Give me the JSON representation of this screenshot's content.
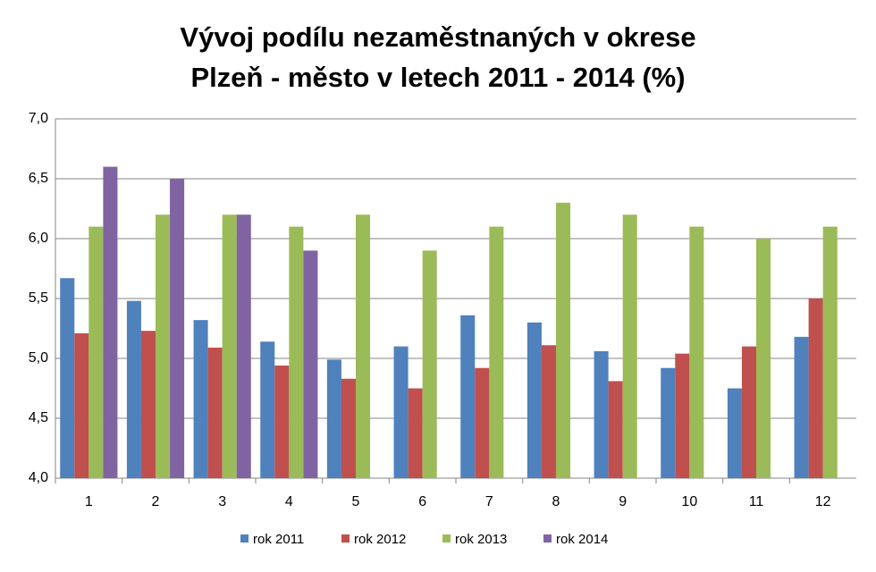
{
  "chart_data": {
    "type": "bar",
    "title": [
      "Vývoj podílu nezaměstnaných v okrese",
      "Plzeň - město v letech 2011 - 2014 (%)"
    ],
    "categories": [
      "1",
      "2",
      "3",
      "4",
      "5",
      "6",
      "7",
      "8",
      "9",
      "10",
      "11",
      "12"
    ],
    "series": [
      {
        "name": "rok 2011",
        "color": "#4f81bd",
        "values": [
          5.67,
          5.48,
          5.32,
          5.14,
          4.99,
          5.1,
          5.36,
          5.3,
          5.06,
          4.92,
          4.75,
          5.18
        ]
      },
      {
        "name": "rok 2012",
        "color": "#c0504d",
        "values": [
          5.21,
          5.23,
          5.09,
          4.94,
          4.83,
          4.75,
          4.92,
          5.11,
          4.81,
          5.04,
          5.1,
          5.5
        ]
      },
      {
        "name": "rok 2013",
        "color": "#9bbb59",
        "values": [
          6.1,
          6.2,
          6.2,
          6.1,
          6.2,
          5.9,
          6.1,
          6.3,
          6.2,
          6.1,
          6.0,
          6.1
        ]
      },
      {
        "name": "rok 2014",
        "color": "#8064a2",
        "values": [
          6.6,
          6.5,
          6.2,
          5.9,
          null,
          null,
          null,
          null,
          null,
          null,
          null,
          null
        ]
      }
    ],
    "ylim": [
      4,
      7
    ],
    "yticks": [
      {
        "value": 4,
        "label": "4,0"
      },
      {
        "value": 4.5,
        "label": "4,5"
      },
      {
        "value": 5,
        "label": "5,0"
      },
      {
        "value": 5.5,
        "label": "5,5"
      },
      {
        "value": 6,
        "label": "6,0"
      },
      {
        "value": 6.5,
        "label": "6,5"
      },
      {
        "value": 7,
        "label": "7,0"
      }
    ],
    "grid": true,
    "legend": "bottom"
  }
}
